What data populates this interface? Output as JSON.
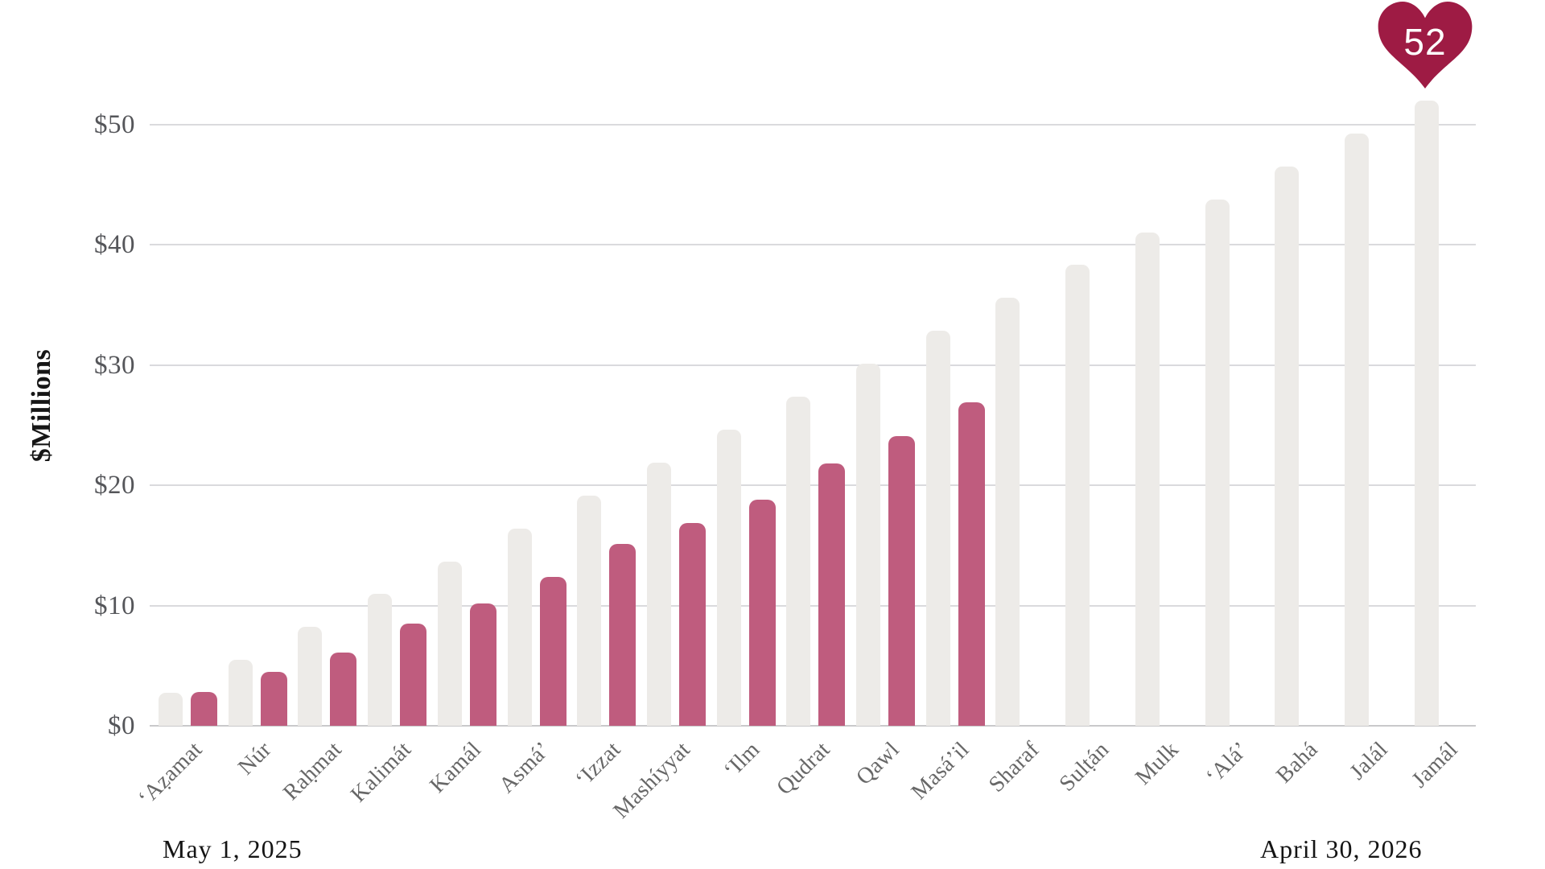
{
  "chart_data": {
    "type": "bar",
    "title": "",
    "xlabel": "",
    "ylabel": "$Millions",
    "ylim": [
      0,
      52
    ],
    "grid": true,
    "legend": false,
    "y_tick_labels": [
      "$0",
      "$10",
      "$20",
      "$30",
      "$40",
      "$50"
    ],
    "y_tick_values": [
      0,
      10,
      20,
      30,
      40,
      50
    ],
    "categories": [
      "‘Aẓamat",
      "Núr",
      "Raḥmat",
      "Kalimát",
      "Kamál",
      "Asmá’",
      "‘Izzat",
      "Mashíyyat",
      "‘Ilm",
      "Qudrat",
      "Qawl",
      "Masá’il",
      "Sharaf",
      "Sulṭán",
      "Mulk",
      "‘Alá’",
      "Bahá",
      "Jalál",
      "Jamál"
    ],
    "series": [
      {
        "name": "cumulative-goal",
        "color": "#edebe8",
        "values": [
          2.74,
          5.47,
          8.21,
          10.95,
          13.68,
          16.42,
          19.16,
          21.89,
          24.63,
          27.37,
          30.11,
          32.84,
          35.58,
          38.32,
          41.05,
          43.79,
          46.53,
          49.26,
          52.0
        ]
      },
      {
        "name": "cumulative-actual",
        "color": "#bf5c7e",
        "values": [
          2.8,
          4.5,
          6.1,
          8.5,
          10.2,
          12.4,
          15.1,
          16.9,
          18.8,
          21.8,
          24.1,
          26.9
        ]
      }
    ],
    "annotations": {
      "heart_badge_value": "52",
      "start_date_label": "May 1, 2025",
      "end_date_label": "April 30, 2026"
    }
  },
  "colors": {
    "goal_bar": "#edebe8",
    "actual_bar": "#bf5c7e",
    "gridline": "#dadadd",
    "axis_line": "#c9c9cb",
    "tick_text": "#55565a",
    "month_text": "#676767",
    "date_text": "#141414",
    "heart": "#9e1b44",
    "heart_text": "#ffffff"
  }
}
